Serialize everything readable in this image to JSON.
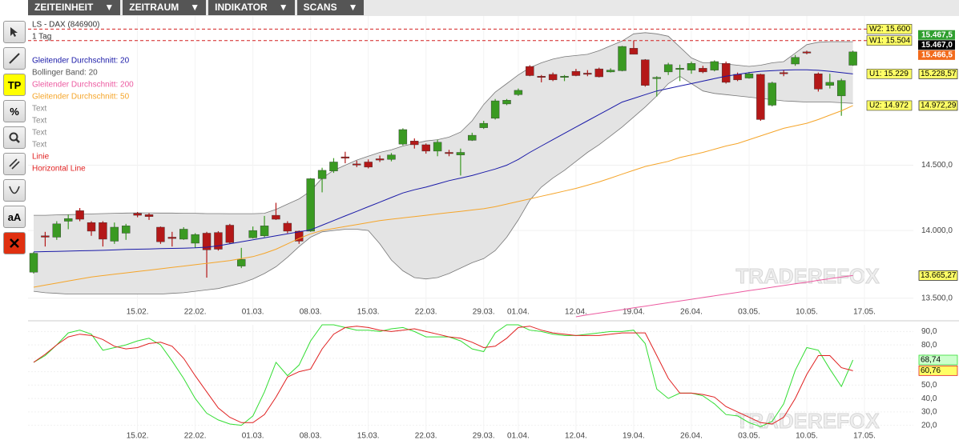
{
  "menu": [
    "ZEITEINHEIT",
    "ZEITRAUM",
    "INDIKATOR",
    "SCANS"
  ],
  "toolbar": {
    "tp": "TP",
    "percent": "%",
    "text": "aA"
  },
  "chart_data": [
    {
      "type": "candlestick",
      "title": "LS - DAX (846900)",
      "subtitle": "1 Tag",
      "watermark": "TRADEREFOX",
      "categories": [
        null,
        null,
        null,
        null,
        null,
        null,
        null,
        null,
        null,
        "15.02.",
        null,
        null,
        null,
        null,
        "22.02.",
        null,
        null,
        null,
        null,
        "01.03.",
        null,
        null,
        null,
        null,
        "08.03.",
        null,
        null,
        null,
        null,
        "15.03.",
        null,
        null,
        null,
        null,
        "22.03.",
        null,
        null,
        null,
        null,
        "29.03.",
        null,
        null,
        "01.04.",
        null,
        null,
        null,
        null,
        "12.04.",
        null,
        null,
        null,
        null,
        "19.04.",
        null,
        null,
        null,
        null,
        "26.04.",
        null,
        null,
        null,
        null,
        "03.05.",
        null,
        null,
        null,
        null,
        "10.05.",
        null,
        null,
        null,
        null,
        "17.05."
      ],
      "open": [
        13690,
        13960,
        13950,
        14070,
        14150,
        14060,
        14060,
        13920,
        13980,
        14130,
        14120,
        14025,
        13950,
        13935,
        13905,
        13980,
        13985,
        14040,
        13735,
        13945,
        13960,
        14115,
        14055,
        13995,
        13995,
        14395,
        14455,
        14565,
        14510,
        14525,
        14550,
        14545,
        14665,
        14690,
        14660,
        14610,
        14600,
        14580,
        14695,
        14795,
        14870,
        14985,
        15060,
        15290,
        15210,
        15225,
        15200,
        15250,
        15235,
        15270,
        15245,
        15255,
        15440,
        15345,
        15190,
        15245,
        15265,
        15260,
        15275,
        15260,
        15315,
        15225,
        15195,
        15225,
        14975,
        15240,
        15310,
        15410,
        15230,
        15135,
        15050,
        15300,
        null
      ],
      "high": [
        13840,
        13990,
        14070,
        14120,
        14170,
        14070,
        14070,
        14060,
        14050,
        14140,
        14130,
        14030,
        13990,
        14025,
        13980,
        13990,
        13995,
        14050,
        13870,
        14030,
        14110,
        14210,
        14070,
        14000,
        14400,
        14480,
        14555,
        14605,
        14535,
        14545,
        14575,
        14595,
        14790,
        14710,
        14670,
        14700,
        14620,
        14630,
        14755,
        14850,
        15025,
        15025,
        15110,
        15300,
        15220,
        15240,
        15220,
        15270,
        15260,
        15280,
        15275,
        15460,
        15505,
        15350,
        15210,
        15320,
        15305,
        15330,
        15295,
        15340,
        15330,
        15240,
        15245,
        15230,
        15165,
        15260,
        15385,
        15420,
        15240,
        15230,
        15190,
        15420,
        null
      ],
      "low": [
        13680,
        13880,
        13930,
        14010,
        14070,
        13960,
        13880,
        13900,
        13930,
        14100,
        14080,
        13900,
        13880,
        13930,
        13870,
        13650,
        13850,
        13900,
        13720,
        13940,
        13950,
        14080,
        13980,
        13900,
        13990,
        14290,
        14440,
        14515,
        14485,
        14475,
        14525,
        14530,
        14655,
        14630,
        14590,
        14570,
        14570,
        14420,
        14690,
        14785,
        14860,
        14975,
        15050,
        15210,
        15160,
        15170,
        15170,
        15210,
        15210,
        15200,
        15240,
        15250,
        15390,
        15125,
        15045,
        15220,
        15170,
        15230,
        15235,
        15250,
        15150,
        15170,
        15190,
        14850,
        14965,
        15210,
        15295,
        15390,
        15085,
        15110,
        14890,
        15295,
        null
      ],
      "close": [
        13830,
        13950,
        14050,
        14090,
        14085,
        13995,
        13935,
        14025,
        14035,
        14115,
        14105,
        13915,
        13940,
        14010,
        13970,
        13855,
        13860,
        13910,
        13785,
        14000,
        14035,
        14085,
        13995,
        13920,
        14395,
        14460,
        14525,
        14555,
        14505,
        14485,
        14540,
        14580,
        14780,
        14660,
        14610,
        14680,
        14595,
        14600,
        14735,
        14830,
        15010,
        15015,
        15095,
        15215,
        15200,
        15180,
        15210,
        15215,
        15230,
        15205,
        15260,
        15455,
        15390,
        15135,
        15200,
        15305,
        15275,
        15315,
        15245,
        15330,
        15160,
        15180,
        15230,
        14860,
        15155,
        15230,
        15365,
        15405,
        15105,
        15160,
        15175,
        15410,
        null
      ],
      "up_color": "#3a9a22",
      "down_color": "#b41818",
      "log_scale": true,
      "ylim": [
        13360,
        15710
      ],
      "yticks": [
        {
          "value": 13500,
          "label": "13.500,0"
        },
        {
          "value": 14000,
          "label": "14.000,0"
        },
        {
          "value": 14500,
          "label": "14.500,0"
        }
      ],
      "grid": true,
      "series": [
        {
          "name": "Gleitender Durchschnitt: 20",
          "color": "#1a1aa8",
          "last_label": "15.228,57",
          "values": [
            13840,
            13842,
            13844,
            13846,
            13848,
            13850,
            13852,
            13855,
            13858,
            13860,
            13862,
            13864,
            13866,
            13868,
            13870,
            13875,
            13885,
            13900,
            13915,
            13930,
            13945,
            13960,
            13975,
            13990,
            14005,
            14040,
            14075,
            14110,
            14145,
            14180,
            14215,
            14250,
            14285,
            14310,
            14330,
            14355,
            14380,
            14400,
            14420,
            14445,
            14470,
            14500,
            14545,
            14600,
            14650,
            14700,
            14750,
            14800,
            14850,
            14900,
            14950,
            15000,
            15030,
            15060,
            15090,
            15110,
            15130,
            15150,
            15170,
            15190,
            15210,
            15225,
            15240,
            15250,
            15255,
            15260,
            15262,
            15262,
            15258,
            15250,
            15240,
            15228.57,
            null
          ]
        },
        {
          "name": "Bollinger Band: 20",
          "color": "#777777",
          "fill": "#e4e4e4",
          "upper": [
            14115,
            14115,
            14118,
            14120,
            14122,
            14125,
            14128,
            14130,
            14132,
            14133,
            14133,
            14132,
            14132,
            14130,
            14130,
            14128,
            14128,
            14127,
            14127,
            14127,
            14130,
            14160,
            14200,
            14240,
            14300,
            14400,
            14460,
            14500,
            14540,
            14570,
            14600,
            14620,
            14650,
            14670,
            14690,
            14700,
            14720,
            14760,
            14850,
            14980,
            15080,
            15150,
            15220,
            15280,
            15320,
            15350,
            15370,
            15380,
            15390,
            15420,
            15460,
            15500,
            15560,
            15570,
            15560,
            15540,
            15450,
            15360,
            15320,
            15320,
            15310,
            15300,
            15290,
            15300,
            15320,
            15330,
            15400,
            15470,
            15490,
            15495,
            15495,
            15495,
            null
          ],
          "lower": [
            13550,
            13540,
            13535,
            13530,
            13530,
            13530,
            13530,
            13530,
            13530,
            13530,
            13530,
            13530,
            13535,
            13540,
            13550,
            13560,
            13570,
            13590,
            13610,
            13640,
            13680,
            13730,
            13800,
            13880,
            13950,
            13990,
            14000,
            14010,
            14010,
            14000,
            13900,
            13780,
            13700,
            13650,
            13640,
            13650,
            13680,
            13720,
            13760,
            13790,
            13850,
            13950,
            14080,
            14230,
            14330,
            14400,
            14460,
            14530,
            14600,
            14660,
            14730,
            14800,
            14880,
            14960,
            15050,
            15150,
            15210,
            15150,
            15090,
            15070,
            15060,
            15050,
            15040,
            15030,
            15020,
            15010,
            15005,
            15000,
            15000,
            15000,
            14995,
            14990,
            null
          ]
        },
        {
          "name": "Gleitender Durchschnitt: 200",
          "color": "#ec5aa0",
          "last_label": "13.665,27",
          "values": [
            null,
            null,
            null,
            null,
            null,
            null,
            null,
            null,
            null,
            null,
            null,
            null,
            null,
            null,
            null,
            null,
            null,
            null,
            null,
            null,
            null,
            null,
            null,
            null,
            null,
            null,
            null,
            null,
            null,
            null,
            null,
            null,
            null,
            null,
            null,
            null,
            null,
            null,
            null,
            null,
            null,
            null,
            null,
            null,
            null,
            null,
            null,
            13366,
            13380,
            13392,
            13405,
            13417,
            13430,
            13442,
            13455,
            13467,
            13480,
            13492,
            13505,
            13517,
            13530,
            13542,
            13555,
            13567,
            13580,
            13592,
            13605,
            13617,
            13630,
            13642,
            13655,
            13665.27,
            null
          ]
        },
        {
          "name": "Gleitender Durchschnitt: 50",
          "color": "#f5a52a",
          "last_label": "14.972,29",
          "values": [
            13580,
            13595,
            13610,
            13625,
            13640,
            13655,
            13665,
            13675,
            13685,
            13695,
            13705,
            13715,
            13725,
            13735,
            13745,
            13755,
            13765,
            13775,
            13790,
            13805,
            13830,
            13860,
            13900,
            13940,
            13975,
            14000,
            14015,
            14030,
            14045,
            14060,
            14075,
            14085,
            14095,
            14105,
            14115,
            14125,
            14135,
            14145,
            14155,
            14165,
            14180,
            14200,
            14220,
            14240,
            14260,
            14280,
            14300,
            14320,
            14345,
            14370,
            14400,
            14430,
            14460,
            14490,
            14510,
            14530,
            14560,
            14580,
            14600,
            14625,
            14650,
            14670,
            14700,
            14730,
            14760,
            14790,
            14810,
            14830,
            14860,
            14895,
            14930,
            14972.29,
            null
          ]
        }
      ],
      "drawings": [
        {
          "name": "Text",
          "color": "#8a8a8a"
        },
        {
          "name": "Text",
          "color": "#8a8a8a"
        },
        {
          "name": "Text",
          "color": "#8a8a8a"
        },
        {
          "name": "Text",
          "color": "#8a8a8a"
        },
        {
          "name": "Linie",
          "color": "#e02020"
        },
        {
          "name": "Horizontal Line",
          "color": "#e02020"
        }
      ],
      "levels": [
        {
          "label": "W2: 15.600",
          "value": 15600,
          "dashed": true,
          "color": "#d42020"
        },
        {
          "label": "W1: 15.504",
          "value": 15504,
          "dashed": true,
          "color": "#d42020"
        },
        {
          "label": "U1: 15.229",
          "value": 15229,
          "dashed": false,
          "color": "#d42020"
        },
        {
          "label": "U2: 14.972",
          "value": 14972,
          "dashed": false,
          "color": "#d42020"
        }
      ],
      "quotes": [
        {
          "value": 15467.5,
          "label": "15.467,5",
          "color": "#2f9f2f"
        },
        {
          "value": 15467,
          "label": "15.467,0",
          "color": "#000000"
        },
        {
          "value": 15466.5,
          "label": "15.466,5",
          "color": "#f26a1b"
        }
      ]
    },
    {
      "type": "line",
      "watermark": "TRADEREFOX",
      "categories": [
        null,
        null,
        null,
        null,
        null,
        null,
        null,
        null,
        null,
        "15.02.",
        null,
        null,
        null,
        null,
        "22.02.",
        null,
        null,
        null,
        null,
        "01.03.",
        null,
        null,
        null,
        null,
        "08.03.",
        null,
        null,
        null,
        null,
        "15.03.",
        null,
        null,
        null,
        null,
        "22.03.",
        null,
        null,
        null,
        null,
        "29.03.",
        null,
        null,
        "01.04.",
        null,
        null,
        null,
        null,
        "12.04.",
        null,
        null,
        null,
        null,
        "19.04.",
        null,
        null,
        null,
        null,
        "26.04.",
        null,
        null,
        null,
        null,
        "03.05.",
        null,
        null,
        null,
        null,
        "10.05.",
        null,
        null,
        null,
        null,
        "17.05."
      ],
      "ylim": [
        15,
        95
      ],
      "yticks": [
        {
          "value": 20,
          "label": "20,0"
        },
        {
          "value": 30,
          "label": "30,0"
        },
        {
          "value": 40,
          "label": "40,0"
        },
        {
          "value": 50,
          "label": "50,0"
        },
        {
          "value": 60,
          "label": "60,0"
        },
        {
          "value": 70,
          "label": "70,0"
        },
        {
          "value": 80,
          "label": "80,0"
        },
        {
          "value": 90,
          "label": "90,0"
        }
      ],
      "grid": true,
      "series": [
        {
          "color": "#33dd33",
          "label_fill": "#ccffcc",
          "last_label": "68,74",
          "values": [
            67,
            72,
            80,
            89,
            91,
            88,
            76,
            78,
            80,
            83,
            85,
            80,
            68,
            55,
            40,
            29,
            24,
            21,
            20,
            27,
            45,
            67,
            57,
            65,
            83,
            95,
            95,
            93,
            91,
            91,
            90,
            92,
            93,
            90,
            86,
            86,
            86,
            83,
            77,
            75,
            89,
            95,
            95,
            91,
            90,
            88,
            87,
            87,
            88,
            89,
            90,
            90,
            91,
            81,
            47,
            40,
            44,
            44,
            42,
            36,
            28,
            27,
            22,
            19,
            23,
            36,
            61,
            78,
            76,
            62,
            49,
            68.74,
            null
          ]
        },
        {
          "color": "#e02020",
          "label_fill": "#ffff66",
          "last_label": "60,76",
          "values": [
            67,
            73,
            80,
            86,
            88,
            87,
            84,
            79,
            77,
            78,
            81,
            82,
            79,
            70,
            57,
            45,
            33,
            26,
            22,
            22,
            28,
            41,
            56,
            60,
            62,
            77,
            88,
            93,
            94,
            93,
            91,
            90,
            91,
            92,
            90,
            88,
            86,
            85,
            82,
            78,
            79,
            85,
            93,
            94,
            91,
            89,
            88,
            87,
            87,
            87,
            88,
            89,
            89,
            89,
            72,
            55,
            44,
            44,
            43,
            41,
            34,
            30,
            26,
            22,
            21,
            26,
            40,
            58,
            72,
            72,
            63,
            60.76,
            null
          ]
        }
      ]
    }
  ]
}
